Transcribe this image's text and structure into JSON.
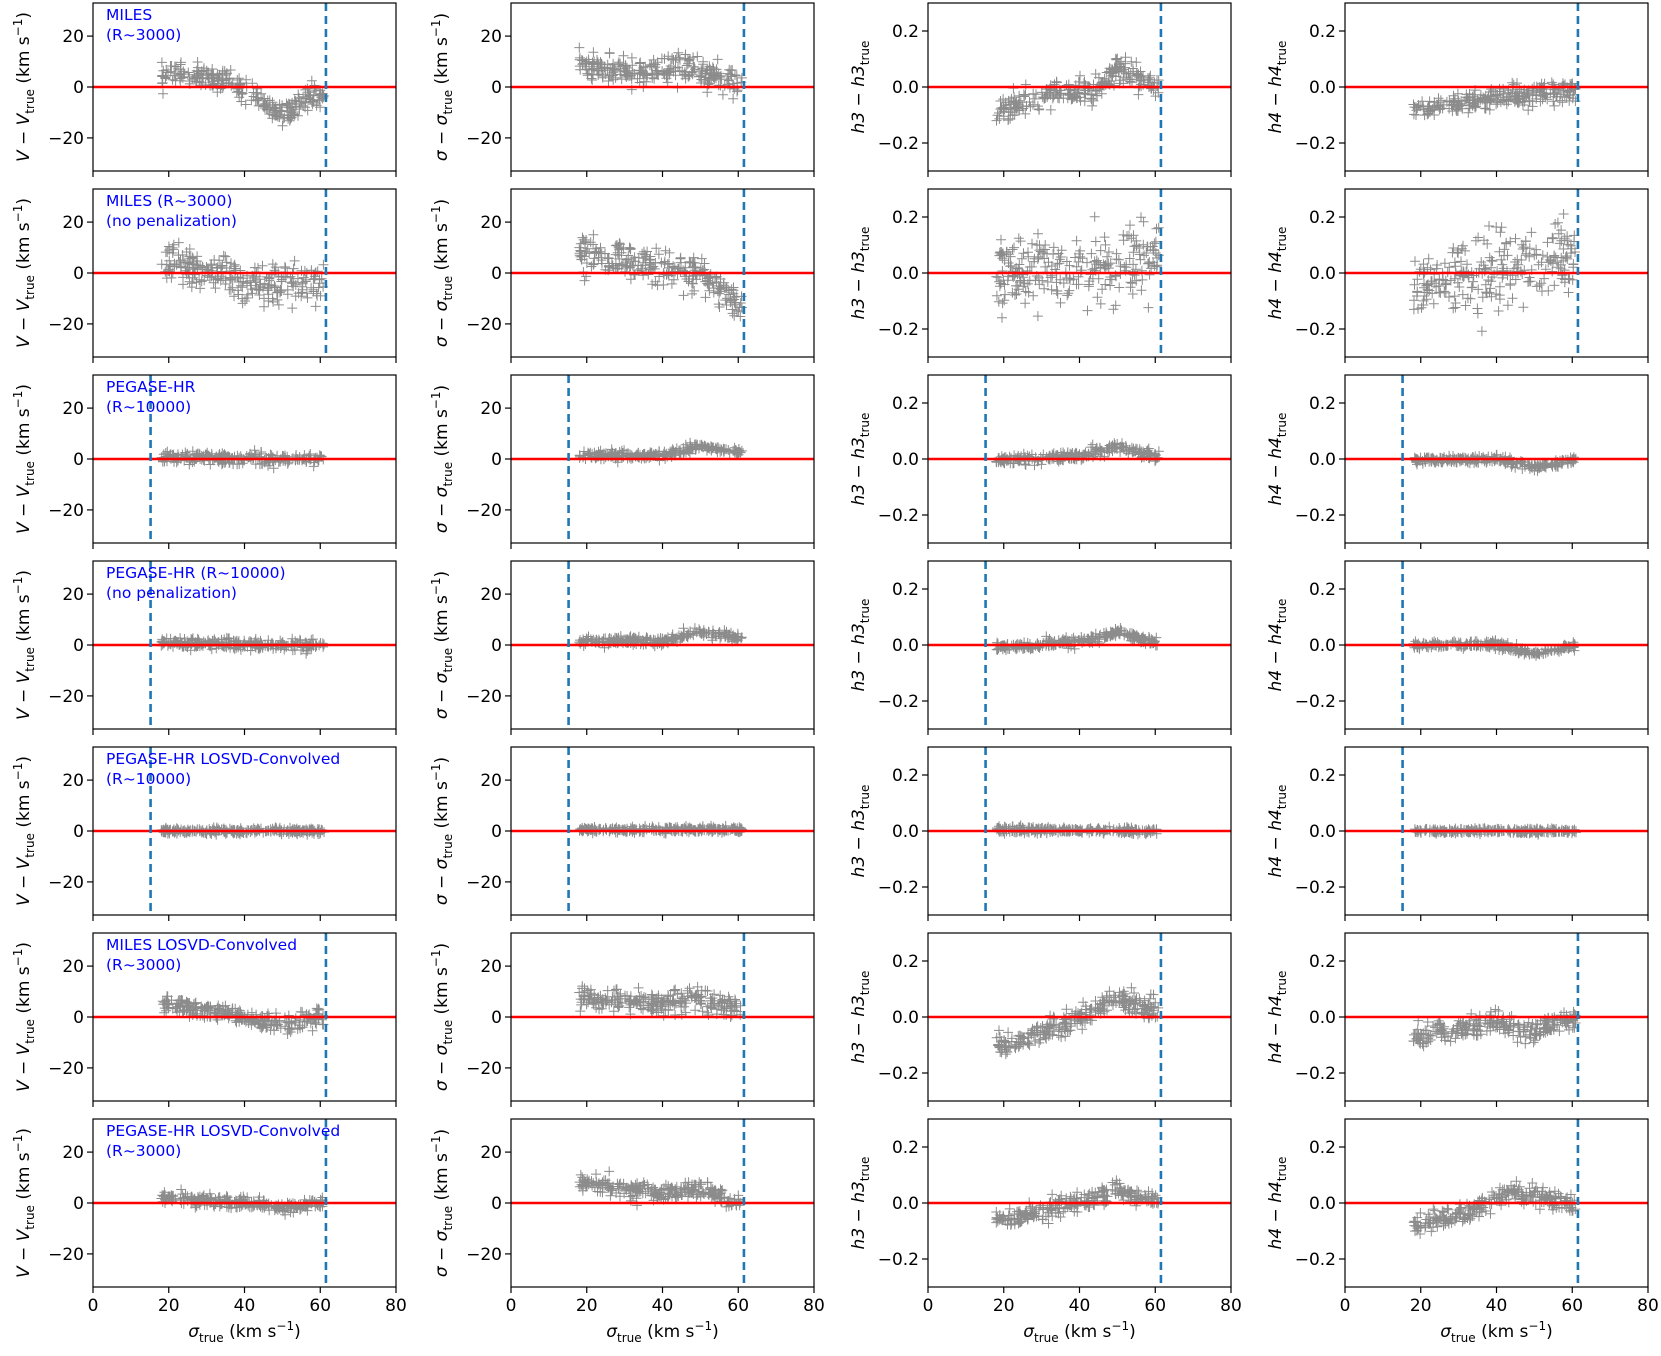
{
  "figure": {
    "colors": {
      "reference_line": "#ff0000",
      "limit_line": "#1f77b4",
      "points": "#000000",
      "panel_label": "#0000ff"
    },
    "x_axis": {
      "label_html": [
        "σ",
        "true",
        " (km s",
        "−1",
        ")"
      ],
      "ticks": [
        "0",
        "20",
        "40",
        "60",
        "80"
      ],
      "range": [
        0,
        80
      ]
    },
    "columns": [
      {
        "quantity": "V",
        "ylabel": [
          "V − V",
          "true",
          " (km s",
          "−1",
          ")"
        ],
        "ylim": [
          -33,
          33
        ],
        "yticks": [
          20,
          0,
          -20
        ],
        "ytick_labels": [
          "20",
          "0",
          "−20"
        ]
      },
      {
        "quantity": "sigma",
        "ylabel": [
          "σ − σ",
          "true",
          " (km s",
          "−1",
          ")"
        ],
        "ylim": [
          -33,
          33
        ],
        "yticks": [
          20,
          0,
          -20
        ],
        "ytick_labels": [
          "20",
          "0",
          "−20"
        ]
      },
      {
        "quantity": "h3",
        "ylabel": [
          "h3 − h3",
          "true",
          "",
          "",
          ""
        ],
        "ylim": [
          -0.3,
          0.3
        ],
        "yticks": [
          0.2,
          0.0,
          -0.2
        ],
        "ytick_labels": [
          "0.2",
          "0.0",
          "−0.2"
        ]
      },
      {
        "quantity": "h4",
        "ylabel": [
          "h4 − h4",
          "true",
          "",
          "",
          ""
        ],
        "ylim": [
          -0.3,
          0.3
        ],
        "yticks": [
          0.2,
          0.0,
          -0.2
        ],
        "ytick_labels": [
          "0.2",
          "0.0",
          "−0.2"
        ]
      }
    ],
    "rows": [
      {
        "label": [
          "MILES",
          "(R~3000)"
        ],
        "limit_x": 61.5
      },
      {
        "label": [
          "MILES (R~3000)",
          "(no penalization)"
        ],
        "limit_x": 61.5
      },
      {
        "label": [
          "PEGASE-HR",
          "(R~10000)"
        ],
        "limit_x": 15.2
      },
      {
        "label": [
          "PEGASE-HR (R~10000)",
          "(no penalization)"
        ],
        "limit_x": 15.2
      },
      {
        "label": [
          "PEGASE-HR LOSVD-Convolved",
          "(R~10000)"
        ],
        "limit_x": 15.2
      },
      {
        "label": [
          "MILES LOSVD-Convolved",
          "(R~3000)"
        ],
        "limit_x": 61.5
      },
      {
        "label": [
          "PEGASE-HR LOSVD-Convolved",
          "(R~3000)"
        ],
        "limit_x": 61.5
      }
    ]
  },
  "chart_data": {
    "type": "scatter",
    "layout": "7 rows x 4 columns grid",
    "x_range": [
      0,
      80
    ],
    "reference_line_y": 0,
    "approx_point_clouds": [
      {
        "row": 0,
        "col": 0,
        "x_span": [
          18,
          61
        ],
        "trend": [
          [
            20,
            5
          ],
          [
            35,
            3
          ],
          [
            45,
            -5
          ],
          [
            50,
            -12
          ],
          [
            55,
            -5
          ],
          [
            60,
            -3
          ]
        ],
        "spread": 4
      },
      {
        "row": 0,
        "col": 1,
        "x_span": [
          18,
          61
        ],
        "trend": [
          [
            20,
            8
          ],
          [
            35,
            5
          ],
          [
            45,
            8
          ],
          [
            55,
            3
          ],
          [
            61,
            2
          ]
        ],
        "spread": 5
      },
      {
        "row": 0,
        "col": 2,
        "x_span": [
          18,
          61
        ],
        "trend": [
          [
            20,
            -0.08
          ],
          [
            35,
            -0.03
          ],
          [
            45,
            0.0
          ],
          [
            50,
            0.07
          ],
          [
            60,
            0.0
          ]
        ],
        "spread": 0.04
      },
      {
        "row": 0,
        "col": 3,
        "x_span": [
          18,
          61
        ],
        "trend": [
          [
            20,
            -0.08
          ],
          [
            40,
            -0.04
          ],
          [
            60,
            -0.01
          ]
        ],
        "spread": 0.035
      },
      {
        "row": 1,
        "col": 0,
        "x_span": [
          18,
          61
        ],
        "trend": [
          [
            20,
            5
          ],
          [
            35,
            -2
          ],
          [
            45,
            -6
          ],
          [
            55,
            -3
          ],
          [
            60,
            -5
          ]
        ],
        "spread": 7
      },
      {
        "row": 1,
        "col": 1,
        "x_span": [
          18,
          61
        ],
        "trend": [
          [
            20,
            8
          ],
          [
            35,
            3
          ],
          [
            50,
            0
          ],
          [
            61,
            -14
          ]
        ],
        "spread": 6
      },
      {
        "row": 1,
        "col": 2,
        "x_span": [
          18,
          61
        ],
        "trend": [
          [
            20,
            0.0
          ],
          [
            40,
            0.02
          ],
          [
            60,
            0.03
          ]
        ],
        "spread": 0.12
      },
      {
        "row": 1,
        "col": 3,
        "x_span": [
          18,
          61
        ],
        "trend": [
          [
            20,
            -0.05
          ],
          [
            40,
            0.0
          ],
          [
            60,
            0.05
          ]
        ],
        "spread": 0.12
      },
      {
        "row": 2,
        "col": 0,
        "x_span": [
          18,
          61
        ],
        "trend": [
          [
            20,
            1
          ],
          [
            40,
            0
          ],
          [
            50,
            0
          ],
          [
            60,
            0
          ]
        ],
        "spread": 2
      },
      {
        "row": 2,
        "col": 1,
        "x_span": [
          18,
          61
        ],
        "trend": [
          [
            20,
            1.5
          ],
          [
            40,
            1.5
          ],
          [
            50,
            5
          ],
          [
            60,
            3
          ]
        ],
        "spread": 1.5
      },
      {
        "row": 2,
        "col": 2,
        "x_span": [
          18,
          61
        ],
        "trend": [
          [
            20,
            -0.005
          ],
          [
            40,
            0.01
          ],
          [
            50,
            0.045
          ],
          [
            60,
            0.01
          ]
        ],
        "spread": 0.015
      },
      {
        "row": 2,
        "col": 3,
        "x_span": [
          18,
          61
        ],
        "trend": [
          [
            20,
            -0.005
          ],
          [
            40,
            0.0
          ],
          [
            50,
            -0.03
          ],
          [
            60,
            -0.005
          ]
        ],
        "spread": 0.012
      },
      {
        "row": 3,
        "col": 0,
        "x_span": [
          18,
          61
        ],
        "trend": [
          [
            20,
            1
          ],
          [
            40,
            0
          ],
          [
            50,
            0
          ],
          [
            60,
            0
          ]
        ],
        "spread": 2
      },
      {
        "row": 3,
        "col": 1,
        "x_span": [
          18,
          61
        ],
        "trend": [
          [
            20,
            1.5
          ],
          [
            40,
            1.5
          ],
          [
            50,
            5
          ],
          [
            60,
            3
          ]
        ],
        "spread": 1.5
      },
      {
        "row": 3,
        "col": 2,
        "x_span": [
          18,
          61
        ],
        "trend": [
          [
            20,
            -0.005
          ],
          [
            40,
            0.01
          ],
          [
            50,
            0.045
          ],
          [
            60,
            0.01
          ]
        ],
        "spread": 0.015
      },
      {
        "row": 3,
        "col": 3,
        "x_span": [
          18,
          61
        ],
        "trend": [
          [
            20,
            0.0
          ],
          [
            40,
            0.0
          ],
          [
            50,
            -0.03
          ],
          [
            60,
            -0.005
          ]
        ],
        "spread": 0.012
      },
      {
        "row": 4,
        "col": 0,
        "x_span": [
          18,
          61
        ],
        "trend": [
          [
            20,
            0
          ],
          [
            60,
            0
          ]
        ],
        "spread": 1
      },
      {
        "row": 4,
        "col": 1,
        "x_span": [
          18,
          61
        ],
        "trend": [
          [
            20,
            0.5
          ],
          [
            60,
            0.5
          ]
        ],
        "spread": 1
      },
      {
        "row": 4,
        "col": 2,
        "x_span": [
          18,
          61
        ],
        "trend": [
          [
            20,
            0.005
          ],
          [
            60,
            0.0
          ]
        ],
        "spread": 0.01
      },
      {
        "row": 4,
        "col": 3,
        "x_span": [
          18,
          61
        ],
        "trend": [
          [
            20,
            0.0
          ],
          [
            60,
            0.0
          ]
        ],
        "spread": 0.008
      },
      {
        "row": 5,
        "col": 0,
        "x_span": [
          18,
          61
        ],
        "trend": [
          [
            20,
            5
          ],
          [
            35,
            1
          ],
          [
            50,
            -3
          ],
          [
            60,
            0
          ]
        ],
        "spread": 3
      },
      {
        "row": 5,
        "col": 1,
        "x_span": [
          18,
          61
        ],
        "trend": [
          [
            20,
            8
          ],
          [
            35,
            5
          ],
          [
            50,
            7
          ],
          [
            60,
            2
          ]
        ],
        "spread": 4
      },
      {
        "row": 5,
        "col": 2,
        "x_span": [
          18,
          61
        ],
        "trend": [
          [
            20,
            -0.1
          ],
          [
            35,
            -0.03
          ],
          [
            50,
            0.07
          ],
          [
            60,
            0.02
          ]
        ],
        "spread": 0.04
      },
      {
        "row": 5,
        "col": 3,
        "x_span": [
          18,
          61
        ],
        "trend": [
          [
            20,
            -0.07
          ],
          [
            40,
            -0.02
          ],
          [
            50,
            -0.05
          ],
          [
            60,
            -0.01
          ]
        ],
        "spread": 0.035
      },
      {
        "row": 6,
        "col": 0,
        "x_span": [
          18,
          61
        ],
        "trend": [
          [
            20,
            2
          ],
          [
            40,
            0
          ],
          [
            50,
            -2
          ],
          [
            60,
            0
          ]
        ],
        "spread": 2
      },
      {
        "row": 6,
        "col": 1,
        "x_span": [
          18,
          61
        ],
        "trend": [
          [
            20,
            8
          ],
          [
            40,
            3
          ],
          [
            50,
            6
          ],
          [
            60,
            0
          ]
        ],
        "spread": 3
      },
      {
        "row": 6,
        "col": 2,
        "x_span": [
          18,
          61
        ],
        "trend": [
          [
            20,
            -0.06
          ],
          [
            40,
            0.0
          ],
          [
            50,
            0.05
          ],
          [
            60,
            0.01
          ]
        ],
        "spread": 0.03
      },
      {
        "row": 6,
        "col": 3,
        "x_span": [
          18,
          61
        ],
        "trend": [
          [
            20,
            -0.08
          ],
          [
            35,
            -0.02
          ],
          [
            45,
            0.04
          ],
          [
            60,
            0.0
          ]
        ],
        "spread": 0.03
      }
    ]
  }
}
